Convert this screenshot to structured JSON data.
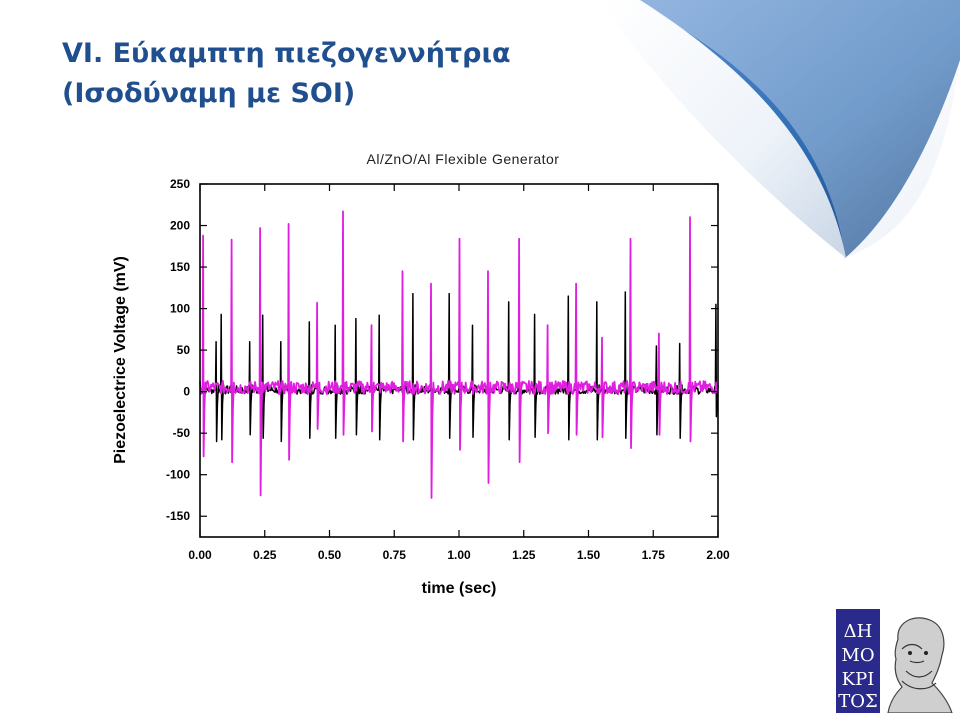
{
  "slide": {
    "title_line1": "VI. Εύκαμπτη πιεζογεννήτρια",
    "title_line2": "(Ισοδύναμη με SOI)"
  },
  "logo": {
    "alt_text": "ΔΗΜΟΚΡΙΤΟΣ"
  },
  "colors": {
    "title": "#1f4f8f",
    "series_black": "#000000",
    "series_magenta": "#e01ee0",
    "curl_blue": "#2f6db3"
  },
  "chart_data": {
    "type": "line",
    "title": "Al/ZnO/Al Flexible Generator",
    "xlabel": "time (sec)",
    "ylabel": "Piezoelectrice Voltage (mV)",
    "xlim": [
      0.0,
      2.0
    ],
    "ylim": [
      -175,
      250
    ],
    "x_ticks": [
      "0.00",
      "0.25",
      "0.50",
      "0.75",
      "1.00",
      "1.25",
      "1.50",
      "1.75",
      "2.00"
    ],
    "y_ticks": [
      "250",
      "200",
      "150",
      "100",
      "50",
      "0",
      "-50",
      "-100",
      "-150"
    ],
    "grid": false,
    "legend": "none",
    "series": [
      {
        "color": "#000000",
        "spikes": [
          {
            "t": 0.06,
            "max": 60,
            "min": -60
          },
          {
            "t": 0.08,
            "max": 93,
            "min": -58
          },
          {
            "t": 0.19,
            "max": 60,
            "min": -52
          },
          {
            "t": 0.24,
            "max": 92,
            "min": -56
          },
          {
            "t": 0.31,
            "max": 60,
            "min": -60
          },
          {
            "t": 0.42,
            "max": 84,
            "min": -56
          },
          {
            "t": 0.52,
            "max": 80,
            "min": -56
          },
          {
            "t": 0.6,
            "max": 88,
            "min": -52
          },
          {
            "t": 0.69,
            "max": 92,
            "min": -58
          },
          {
            "t": 0.82,
            "max": 118,
            "min": -58
          },
          {
            "t": 0.96,
            "max": 118,
            "min": -56
          },
          {
            "t": 1.05,
            "max": 80,
            "min": -55
          },
          {
            "t": 1.19,
            "max": 108,
            "min": -58
          },
          {
            "t": 1.29,
            "max": 93,
            "min": -55
          },
          {
            "t": 1.42,
            "max": 115,
            "min": -58
          },
          {
            "t": 1.53,
            "max": 108,
            "min": -58
          },
          {
            "t": 1.64,
            "max": 120,
            "min": -56
          },
          {
            "t": 1.76,
            "max": 55,
            "min": -52
          },
          {
            "t": 1.85,
            "max": 58,
            "min": -56
          },
          {
            "t": 1.99,
            "max": 105,
            "min": -30
          }
        ]
      },
      {
        "color": "#e01ee0",
        "spikes": [
          {
            "t": 0.01,
            "max": 188,
            "min": -78
          },
          {
            "t": 0.12,
            "max": 183,
            "min": -85
          },
          {
            "t": 0.23,
            "max": 197,
            "min": -125
          },
          {
            "t": 0.34,
            "max": 202,
            "min": -82
          },
          {
            "t": 0.45,
            "max": 107,
            "min": -45
          },
          {
            "t": 0.55,
            "max": 217,
            "min": -52
          },
          {
            "t": 0.66,
            "max": 80,
            "min": -48
          },
          {
            "t": 0.78,
            "max": 145,
            "min": -60
          },
          {
            "t": 0.89,
            "max": 130,
            "min": -128
          },
          {
            "t": 1.0,
            "max": 184,
            "min": -70
          },
          {
            "t": 1.11,
            "max": 145,
            "min": -110
          },
          {
            "t": 1.23,
            "max": 184,
            "min": -85
          },
          {
            "t": 1.34,
            "max": 80,
            "min": -50
          },
          {
            "t": 1.45,
            "max": 130,
            "min": -52
          },
          {
            "t": 1.55,
            "max": 65,
            "min": -55
          },
          {
            "t": 1.66,
            "max": 184,
            "min": -68
          },
          {
            "t": 1.77,
            "max": 70,
            "min": -52
          },
          {
            "t": 1.89,
            "max": 210,
            "min": -60
          }
        ]
      }
    ]
  }
}
